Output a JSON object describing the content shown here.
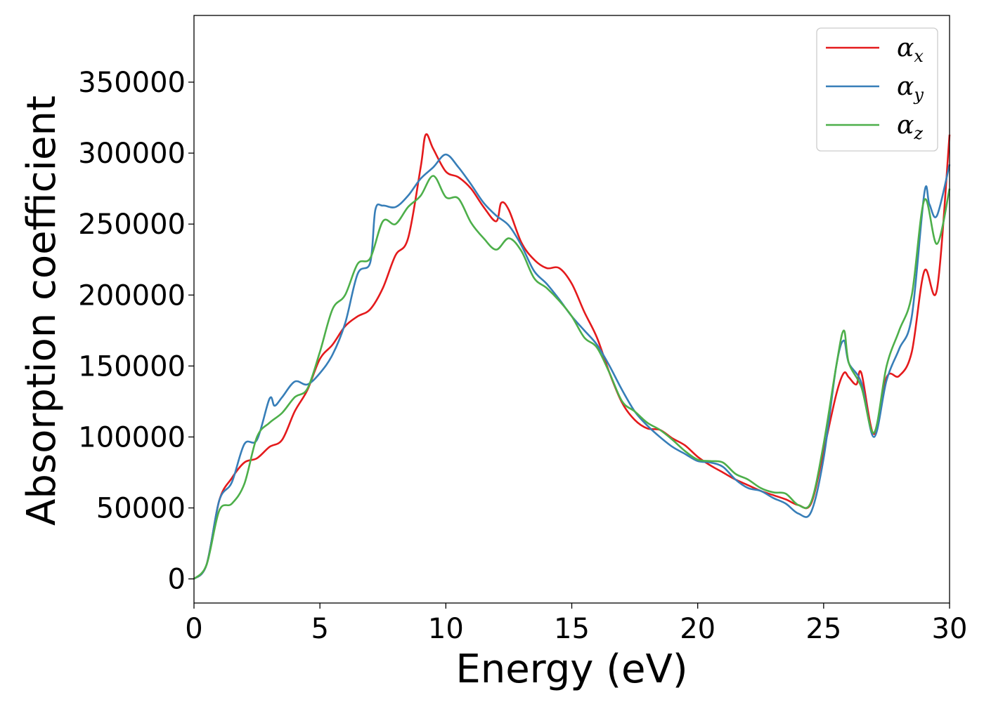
{
  "chart_data": {
    "type": "line",
    "title": "",
    "xlabel": "Energy (eV)",
    "ylabel": "Absorption coefficient",
    "xlim": [
      0,
      30
    ],
    "ylim": [
      -17000,
      397000
    ],
    "x_ticks": [
      0,
      5,
      10,
      15,
      20,
      25,
      30
    ],
    "y_ticks": [
      0,
      50000,
      100000,
      150000,
      200000,
      250000,
      300000,
      350000
    ],
    "grid": false,
    "legend_position": "top-right",
    "series": [
      {
        "name": "α",
        "subscript": "x",
        "color": "#e41a1c",
        "x": [
          0,
          0.5,
          1,
          1.5,
          2,
          2.5,
          3,
          3.5,
          4,
          4.5,
          5,
          5.5,
          6,
          6.5,
          7,
          7.5,
          8,
          8.5,
          9,
          9.2,
          9.5,
          10,
          10.5,
          11,
          11.5,
          12,
          12.2,
          12.5,
          13,
          13.5,
          14,
          14.5,
          15,
          15.5,
          16,
          16.5,
          17,
          17.5,
          18,
          18.5,
          19,
          19.5,
          20,
          20.5,
          21,
          21.5,
          22,
          22.5,
          23,
          23.5,
          24,
          24.5,
          25,
          25.5,
          25.8,
          26,
          26.3,
          26.5,
          27,
          27.5,
          28,
          28.5,
          29,
          29.5,
          30
        ],
        "y": [
          0,
          10000,
          55000,
          71000,
          82000,
          85000,
          93000,
          98000,
          118000,
          133000,
          155000,
          165000,
          178000,
          185000,
          190000,
          205000,
          228000,
          240000,
          290000,
          313000,
          303000,
          287000,
          283000,
          275000,
          262000,
          252000,
          265000,
          260000,
          237000,
          225000,
          219000,
          219000,
          208000,
          188000,
          170000,
          145000,
          124000,
          112000,
          106000,
          105000,
          99000,
          94000,
          86000,
          80000,
          75000,
          70000,
          66000,
          62000,
          59000,
          56000,
          52000,
          53000,
          90000,
          130000,
          145000,
          142000,
          137000,
          145000,
          102000,
          142000,
          143000,
          160000,
          217000,
          204000,
          313000
        ]
      },
      {
        "name": "α",
        "subscript": "y",
        "color": "#377eb8",
        "x": [
          0,
          0.5,
          1,
          1.5,
          2,
          2.5,
          3,
          3.2,
          3.5,
          4,
          4.5,
          5,
          5.5,
          6,
          6.5,
          7,
          7.2,
          7.5,
          8,
          8.5,
          9,
          9.5,
          10,
          10.5,
          11,
          11.5,
          12,
          12.5,
          13,
          13.5,
          14,
          14.5,
          15,
          15.5,
          16,
          16.5,
          17,
          17.5,
          18,
          18.5,
          19,
          19.5,
          20,
          20.5,
          21,
          21.5,
          22,
          22.5,
          23,
          23.5,
          24,
          24.5,
          25,
          25.5,
          25.8,
          26,
          26.5,
          27,
          27.5,
          28,
          28.5,
          29,
          29.2,
          29.5,
          30
        ],
        "y": [
          0,
          10000,
          55000,
          68000,
          95000,
          98000,
          127000,
          122000,
          128000,
          139000,
          137000,
          145000,
          158000,
          180000,
          215000,
          223000,
          260000,
          263000,
          262000,
          270000,
          282000,
          290000,
          299000,
          290000,
          278000,
          265000,
          256000,
          249000,
          235000,
          217000,
          208000,
          197000,
          185000,
          175000,
          165000,
          150000,
          133000,
          118000,
          108000,
          100000,
          93000,
          88000,
          83000,
          82000,
          79000,
          70000,
          64000,
          62000,
          57000,
          53000,
          46000,
          47000,
          85000,
          150000,
          168000,
          152000,
          138000,
          100000,
          140000,
          162000,
          185000,
          272000,
          264000,
          256000,
          292000
        ]
      },
      {
        "name": "α",
        "subscript": "z",
        "color": "#4daf4a",
        "x": [
          0,
          0.5,
          1,
          1.5,
          2,
          2.5,
          3,
          3.5,
          4,
          4.5,
          5,
          5.5,
          6,
          6.5,
          7,
          7.5,
          8,
          8.5,
          9,
          9.5,
          10,
          10.5,
          11,
          11.5,
          12,
          12.5,
          13,
          13.5,
          14,
          14.5,
          15,
          15.5,
          16,
          16.5,
          17,
          17.5,
          18,
          18.5,
          19,
          19.5,
          20,
          20.5,
          21,
          21.5,
          22,
          22.5,
          23,
          23.5,
          24,
          24.5,
          25,
          25.5,
          25.8,
          26,
          26.5,
          27,
          27.5,
          28,
          28.5,
          29,
          29.5,
          30
        ],
        "y": [
          0,
          10000,
          48000,
          53000,
          67000,
          100000,
          110000,
          117000,
          128000,
          134000,
          160000,
          190000,
          200000,
          222000,
          226000,
          252000,
          250000,
          262000,
          270000,
          284000,
          269000,
          268000,
          251000,
          240000,
          232000,
          240000,
          231000,
          212000,
          205000,
          196000,
          185000,
          170000,
          163000,
          145000,
          125000,
          118000,
          110000,
          105000,
          98000,
          90000,
          84000,
          83000,
          82000,
          74000,
          70000,
          64000,
          61000,
          60000,
          52000,
          54000,
          95000,
          150000,
          175000,
          152000,
          135000,
          103000,
          150000,
          175000,
          200000,
          267000,
          236000,
          275000
        ]
      }
    ]
  }
}
